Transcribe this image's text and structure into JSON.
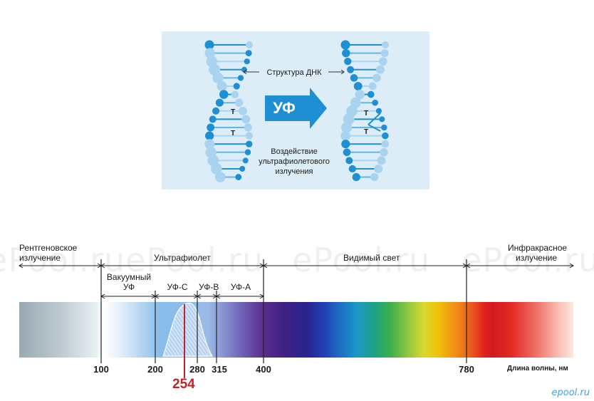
{
  "dna": {
    "structure_label": "Структура ДНК",
    "arrow_label": "УФ",
    "caption_lines": [
      "Воздействие",
      "ультрафиолетового",
      "излучения"
    ],
    "base_letter": "Т"
  },
  "spectrum": {
    "regions": {
      "xray_lines": [
        "Рентгеновское",
        "излучение"
      ],
      "ultraviolet": "Ультрафиолет",
      "visible": "Видимый свет",
      "infrared_lines": [
        "Инфракрасное",
        "излучение"
      ]
    },
    "uv_subbands": {
      "vacuum_lines": [
        "Вакуумный",
        "УФ"
      ],
      "uvc": "УФ-С",
      "uvb": "УФ-В",
      "uva": "УФ-А"
    },
    "axis_title": "Длина волны, нм",
    "ticks": [
      "100",
      "200",
      "280",
      "315",
      "400",
      "780"
    ],
    "highlight_value": "254",
    "highlight_color": "#c0222b",
    "accent_color": "#1ea0dc"
  },
  "watermark": "ePool.ru",
  "logo": "epool.ru"
}
